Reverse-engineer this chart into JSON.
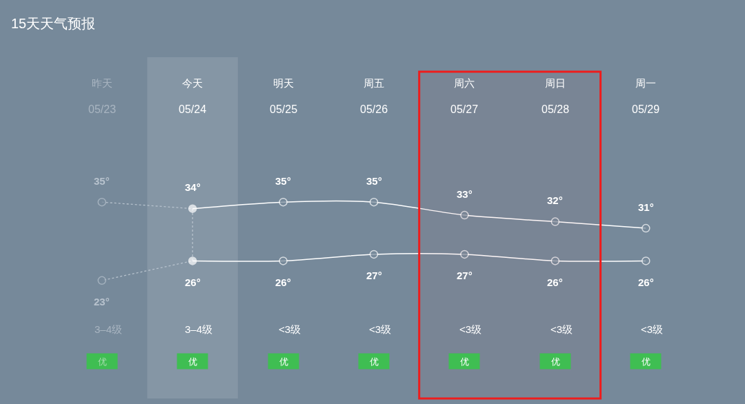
{
  "chart_data": {
    "type": "line",
    "title": "15天天气预报",
    "categories": [
      "昨天\n05/23",
      "今天\n05/24",
      "明天\n05/25",
      "周五\n05/26",
      "周六\n05/27",
      "周日\n05/28",
      "周一\n05/29"
    ],
    "marker": "circle",
    "series": [
      {
        "color": "#b7c2cd",
        "line_style": "dotted",
        "x": [
          "昨天\n05/23",
          "今天\n05/24",
          "今天\n05/24",
          "昨天\n05/23"
        ],
        "values": [
          35,
          34,
          26,
          23
        ],
        "value_labels": [
          "35°",
          null,
          null,
          "23°"
        ]
      },
      {
        "color": "#ffffff",
        "values": [
          null,
          34,
          35,
          35,
          33,
          32,
          31
        ],
        "value_labels": [
          null,
          "34°",
          "35°",
          "35°",
          "33°",
          "32°",
          "31°"
        ],
        "colors": [
          null,
          "#ffffff",
          "#76899a",
          "#76899a",
          "#76899a",
          "#76899a",
          "#76899a"
        ]
      },
      {
        "color": "#ffffff",
        "values": [
          null,
          26,
          26,
          27,
          27,
          26,
          26
        ],
        "value_labels": [
          null,
          "26°",
          "26°",
          "27°",
          "27°",
          "26°",
          "26°"
        ],
        "colors": [
          null,
          "#ffffff",
          "#76899a",
          "#76899a",
          "#76899a",
          "#76899a",
          "#76899a"
        ]
      }
    ],
    "annotations": [
      "3–4级",
      "3–4级",
      "<3级",
      "<3级",
      "<3级",
      "<3级",
      "<3级",
      "优",
      "优",
      "优",
      "优",
      "优",
      "优",
      "优"
    ],
    "bands": [
      {
        "axis": "x",
        "from": "今天\n05/24",
        "to": "今天\n05/24",
        "color": "#8596a5"
      },
      {
        "axis": "x",
        "from": "周六\n05/27",
        "to": "周日\n05/28",
        "color": "#ee1c1c"
      }
    ]
  }
}
